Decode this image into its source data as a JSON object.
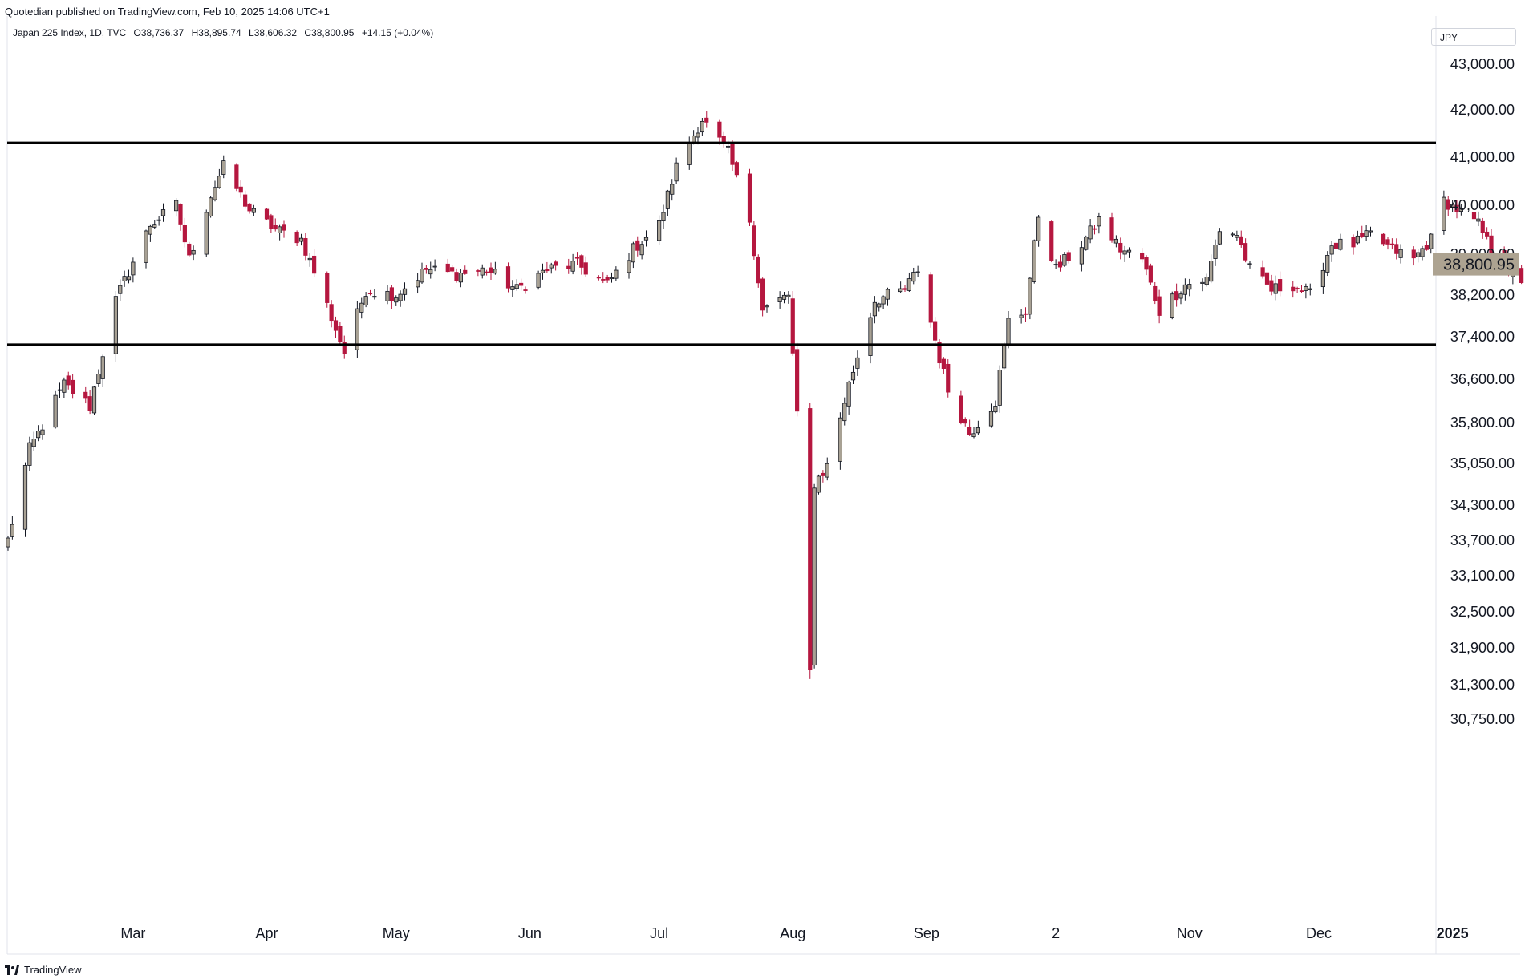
{
  "header": {
    "published": "Quotedian published on TradingView.com, Feb 10, 2025 14:06 UTC+1",
    "symbol": "Japan 225 Index, 1D, TVC",
    "open": "O38,736.37",
    "high": "H38,895.74",
    "low": "L38,606.32",
    "close": "C38,800.95",
    "change": "+14.15 (+0.04%)"
  },
  "currency": "JPY",
  "last_price_label": "38,800.95",
  "footer": {
    "brand": "TradingView"
  },
  "colors": {
    "up_fill": "#a8a194",
    "down_fill": "#b5173f",
    "wick_up": "#131722",
    "wick_down": "#b5173f",
    "last_price_bg": "#ada391",
    "line": "#000000"
  },
  "chart_data": {
    "type": "candlestick",
    "title": "Japan 225 Index, 1D, TVC",
    "y_axis_position": "right",
    "y_ticks": [
      43000,
      42000,
      41000,
      40000,
      39000,
      38200,
      37400,
      36600,
      35800,
      35050,
      34300,
      33700,
      33100,
      32500,
      31900,
      31300,
      30750
    ],
    "y_tick_labels": [
      "43,000.00",
      "42,000.00",
      "41,000.00",
      "40,000.00",
      "39,000.00",
      "38,200.00",
      "37,400.00",
      "36,600.00",
      "35,800.00",
      "35,050.00",
      "34,300.00",
      "33,700.00",
      "33,100.00",
      "32,500.00",
      "31,900.00",
      "31,300.00",
      "30,750.00"
    ],
    "x_labels": [
      "Mar",
      "Apr",
      "May",
      "Jun",
      "Jul",
      "Aug",
      "Sep",
      "2",
      "Nov",
      "Dec",
      "2025",
      "Mar"
    ],
    "horizontal_lines": [
      41300,
      37250
    ],
    "last_price": 38800.95,
    "anchors": [
      [
        "2024-02-01",
        33700
      ],
      [
        "2024-02-06",
        35300
      ],
      [
        "2024-02-14",
        36500
      ],
      [
        "2024-02-20",
        36100
      ],
      [
        "2024-02-26",
        38100
      ],
      [
        "2024-03-05",
        39600
      ],
      [
        "2024-03-11",
        40000
      ],
      [
        "2024-03-14",
        38900
      ],
      [
        "2024-03-19",
        40200
      ],
      [
        "2024-03-22",
        40800
      ],
      [
        "2024-03-28",
        39900
      ],
      [
        "2024-04-03",
        39500
      ],
      [
        "2024-04-09",
        39300
      ],
      [
        "2024-04-15",
        38000
      ],
      [
        "2024-04-19",
        37100
      ],
      [
        "2024-04-24",
        38300
      ],
      [
        "2024-05-01",
        38200
      ],
      [
        "2024-05-08",
        38700
      ],
      [
        "2024-05-15",
        38600
      ],
      [
        "2024-05-22",
        38700
      ],
      [
        "2024-05-29",
        38300
      ],
      [
        "2024-06-05",
        38700
      ],
      [
        "2024-06-12",
        38800
      ],
      [
        "2024-06-19",
        38400
      ],
      [
        "2024-06-25",
        39100
      ],
      [
        "2024-07-01",
        39600
      ],
      [
        "2024-07-05",
        40800
      ],
      [
        "2024-07-11",
        41800
      ],
      [
        "2024-07-17",
        41100
      ],
      [
        "2024-07-22",
        39700
      ],
      [
        "2024-07-25",
        37900
      ],
      [
        "2024-07-31",
        38200
      ],
      [
        "2024-08-02",
        35900
      ],
      [
        "2024-08-05",
        31500
      ],
      [
        "2024-08-06",
        34700
      ],
      [
        "2024-08-09",
        35000
      ],
      [
        "2024-08-14",
        36500
      ],
      [
        "2024-08-20",
        38100
      ],
      [
        "2024-08-27",
        38300
      ],
      [
        "2024-08-30",
        38700
      ],
      [
        "2024-09-04",
        37000
      ],
      [
        "2024-09-06",
        36400
      ],
      [
        "2024-09-11",
        35600
      ],
      [
        "2024-09-17",
        36200
      ],
      [
        "2024-09-20",
        37700
      ],
      [
        "2024-09-24",
        37900
      ],
      [
        "2024-09-27",
        39800
      ],
      [
        "2024-10-01",
        38700
      ],
      [
        "2024-10-07",
        39200
      ],
      [
        "2024-10-11",
        39700
      ],
      [
        "2024-10-16",
        39100
      ],
      [
        "2024-10-21",
        38900
      ],
      [
        "2024-10-25",
        37900
      ],
      [
        "2024-10-31",
        38400
      ],
      [
        "2024-11-05",
        38500
      ],
      [
        "2024-11-08",
        39500
      ],
      [
        "2024-11-12",
        39400
      ],
      [
        "2024-11-15",
        38700
      ],
      [
        "2024-11-20",
        38300
      ],
      [
        "2024-11-25",
        38400
      ],
      [
        "2024-11-29",
        38200
      ],
      [
        "2024-12-04",
        39200
      ],
      [
        "2024-12-09",
        39200
      ],
      [
        "2024-12-13",
        39400
      ],
      [
        "2024-12-18",
        39100
      ],
      [
        "2024-12-23",
        38900
      ],
      [
        "2024-12-27",
        39300
      ],
      [
        "2024-12-30",
        40100
      ],
      [
        "2025-01-07",
        39600
      ],
      [
        "2025-01-10",
        39100
      ],
      [
        "2025-01-14",
        38700
      ],
      [
        "2025-01-17",
        38500
      ],
      [
        "2025-01-22",
        39200
      ],
      [
        "2025-01-24",
        39900
      ],
      [
        "2025-01-28",
        39000
      ],
      [
        "2025-01-31",
        39500
      ],
      [
        "2025-02-04",
        38600
      ],
      [
        "2025-02-06",
        39000
      ],
      [
        "2025-02-10",
        38800
      ]
    ]
  }
}
